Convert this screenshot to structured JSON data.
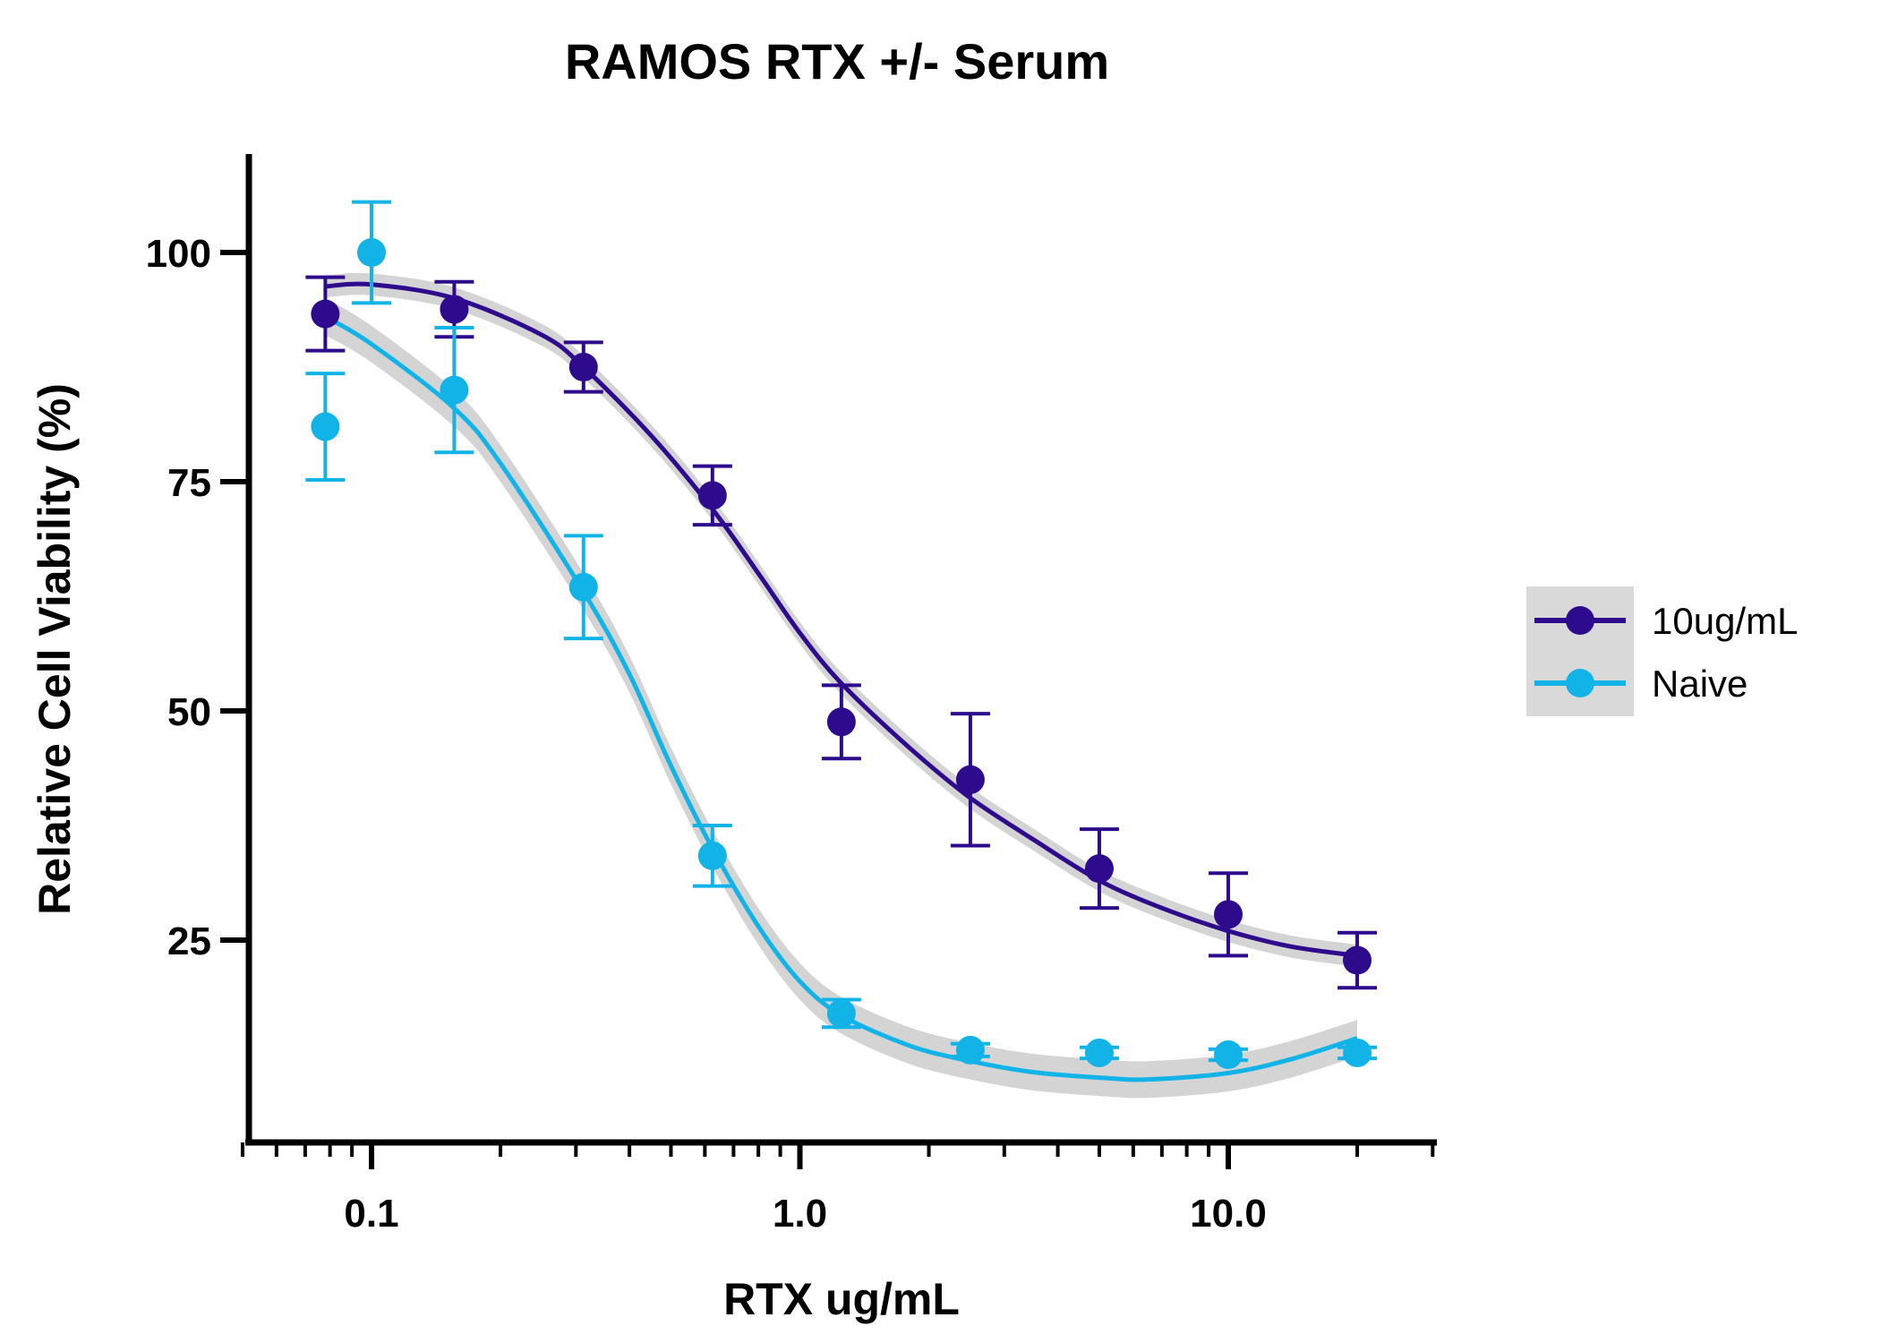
{
  "chart_data": {
    "type": "scatter",
    "title": "RAMOS RTX +/- Serum",
    "xlabel": "RTX ug/mL",
    "ylabel": "Relative Cell Viability (%)",
    "x_scale": "log",
    "xlim": [
      0.05,
      30
    ],
    "ylim": [
      0,
      110
    ],
    "x_ticks": [
      {
        "value": 0.1,
        "label": "0.1"
      },
      {
        "value": 1.0,
        "label": "1.0"
      },
      {
        "value": 10.0,
        "label": "10.0"
      }
    ],
    "y_ticks": [
      {
        "value": 25,
        "label": "25"
      },
      {
        "value": 50,
        "label": "50"
      },
      {
        "value": 75,
        "label": "75"
      },
      {
        "value": 100,
        "label": "100"
      }
    ],
    "legend_position": "right",
    "grid": false,
    "series": [
      {
        "name": "10ug/mL",
        "color": "#2e0a8c",
        "points": [
          {
            "x": 0.078,
            "y": 93.3,
            "err": 4.0
          },
          {
            "x": 0.156,
            "y": 93.8,
            "err": 3.0
          },
          {
            "x": 0.3125,
            "y": 87.5,
            "err": 2.7
          },
          {
            "x": 0.625,
            "y": 73.5,
            "err": 3.2
          },
          {
            "x": 1.25,
            "y": 48.8,
            "err": 4.0
          },
          {
            "x": 2.5,
            "y": 42.5,
            "err": 7.2
          },
          {
            "x": 5.0,
            "y": 32.8,
            "err": 4.3
          },
          {
            "x": 10.0,
            "y": 27.8,
            "err": 4.5
          },
          {
            "x": 20.0,
            "y": 22.8,
            "err": 3.0
          }
        ],
        "fit": [
          {
            "x": 0.078,
            "y": 96.3
          },
          {
            "x": 0.1,
            "y": 96.5
          },
          {
            "x": 0.156,
            "y": 95.0
          },
          {
            "x": 0.25,
            "y": 91.0
          },
          {
            "x": 0.3125,
            "y": 87.5
          },
          {
            "x": 0.45,
            "y": 80.0
          },
          {
            "x": 0.625,
            "y": 72.0
          },
          {
            "x": 0.8,
            "y": 65.0
          },
          {
            "x": 1.0,
            "y": 58.5
          },
          {
            "x": 1.25,
            "y": 53.0
          },
          {
            "x": 1.8,
            "y": 46.0
          },
          {
            "x": 2.5,
            "y": 40.5
          },
          {
            "x": 3.5,
            "y": 36.0
          },
          {
            "x": 5.0,
            "y": 31.5
          },
          {
            "x": 7.0,
            "y": 28.5
          },
          {
            "x": 10.0,
            "y": 26.0
          },
          {
            "x": 14.0,
            "y": 24.3
          },
          {
            "x": 20.0,
            "y": 23.3
          }
        ],
        "band": 1.2
      },
      {
        "name": "Naive",
        "color": "#12b4e8",
        "points": [
          {
            "x": 0.078,
            "y": 81.0,
            "err": 5.8
          },
          {
            "x": 0.1,
            "y": 100.0,
            "err": 5.5
          },
          {
            "x": 0.156,
            "y": 85.0,
            "err": 6.8
          },
          {
            "x": 0.3125,
            "y": 63.5,
            "err": 5.6
          },
          {
            "x": 0.625,
            "y": 34.2,
            "err": 3.3
          },
          {
            "x": 1.25,
            "y": 17.0,
            "err": 1.5
          },
          {
            "x": 2.5,
            "y": 13.0,
            "err": 0.7
          },
          {
            "x": 5.0,
            "y": 12.7,
            "err": 0.6
          },
          {
            "x": 10.0,
            "y": 12.5,
            "err": 0.6
          },
          {
            "x": 20.0,
            "y": 12.7,
            "err": 0.6
          }
        ],
        "fit": [
          {
            "x": 0.078,
            "y": 93.0
          },
          {
            "x": 0.1,
            "y": 90.0
          },
          {
            "x": 0.156,
            "y": 83.0
          },
          {
            "x": 0.2,
            "y": 77.0
          },
          {
            "x": 0.3125,
            "y": 63.0
          },
          {
            "x": 0.4,
            "y": 54.0
          },
          {
            "x": 0.5,
            "y": 44.0
          },
          {
            "x": 0.625,
            "y": 35.0
          },
          {
            "x": 0.8,
            "y": 26.5
          },
          {
            "x": 1.0,
            "y": 20.5
          },
          {
            "x": 1.25,
            "y": 16.8
          },
          {
            "x": 1.8,
            "y": 13.5
          },
          {
            "x": 2.5,
            "y": 11.8
          },
          {
            "x": 3.5,
            "y": 10.6
          },
          {
            "x": 5.0,
            "y": 10.0
          },
          {
            "x": 6.5,
            "y": 9.8
          },
          {
            "x": 10.0,
            "y": 10.5
          },
          {
            "x": 14.0,
            "y": 12.0
          },
          {
            "x": 20.0,
            "y": 14.3
          }
        ],
        "band": 2.0
      }
    ]
  }
}
